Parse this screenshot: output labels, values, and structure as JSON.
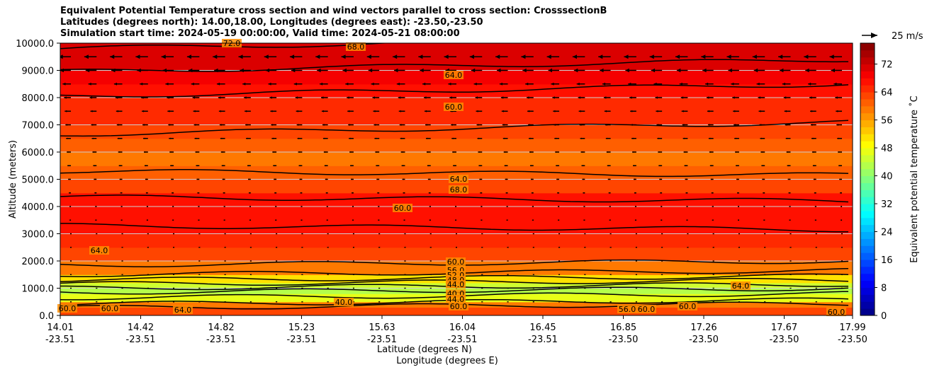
{
  "chart_data": {
    "type": "heatmap",
    "title_lines": [
      "Equivalent Potential Temperature cross section and wind vectors parallel to cross section: CrosssectionB",
      "Latitudes (degrees north): 14.00,18.00, Longitudes (degrees east): -23.50,-23.50",
      "Simulation start time: 2024-05-19 00:00:00, Valid time: 2024-05-21 08:00:00"
    ],
    "ylabel": "Altitude (meters)",
    "xlabel_lat": "Latitude (degrees N)",
    "xlabel_lon": "Longitude (degrees E)",
    "ylim": [
      0,
      10000
    ],
    "y_ticks": [
      "0.0",
      "1000.0",
      "2000.0",
      "3000.0",
      "4000.0",
      "5000.0",
      "6000.0",
      "7000.0",
      "8000.0",
      "9000.0",
      "10000.0"
    ],
    "x_ticks_lat": [
      "14.01",
      "14.42",
      "14.82",
      "15.23",
      "15.63",
      "16.04",
      "16.45",
      "16.85",
      "17.26",
      "17.67",
      "17.99"
    ],
    "x_ticks_lon": [
      "-23.51",
      "-23.51",
      "-23.51",
      "-23.51",
      "-23.51",
      "-23.51",
      "-23.51",
      "-23.50",
      "-23.50",
      "-23.50",
      "-23.50"
    ],
    "colorbar_label": "Equivalent potential temperature $^\\circ$C",
    "colorbar_ticks": [
      "0",
      "8",
      "16",
      "24",
      "32",
      "40",
      "48",
      "56",
      "64",
      "72"
    ],
    "colorbar_range": [
      0,
      78
    ],
    "colormap": "jet",
    "grid": "horizontal",
    "quiver_key_label": "25 m/s",
    "contour_labels": [
      "72.0",
      "68.0",
      "64.0",
      "60.0",
      "64.0",
      "68.0",
      "60.0",
      "64.0",
      "60.0",
      "56.0",
      "52.0",
      "48.0",
      "44.0",
      "40.0",
      "44.0",
      "60.0",
      "64.0",
      "40.0",
      "56.0",
      "60.0",
      "64.0",
      "60.0",
      "60.0",
      "60.0",
      "60.0"
    ],
    "theta_e_profile": {
      "altitude_m": [
        0,
        300,
        500,
        800,
        1000,
        1200,
        1500,
        2000,
        2500,
        3000,
        3500,
        4000,
        4500,
        5000,
        5500,
        6000,
        6500,
        7000,
        7500,
        8000,
        8500,
        9000,
        9500,
        10000
      ],
      "theta_e_c": [
        62,
        58,
        46,
        42,
        44,
        50,
        58,
        63,
        65,
        66,
        67,
        66,
        63,
        60,
        59,
        60,
        62,
        64,
        65,
        66,
        68,
        70,
        71,
        72
      ]
    },
    "wind_levels_m": [
      9500,
      9000,
      8500,
      8000,
      7500,
      7000,
      6500,
      6000,
      5500,
      5000,
      4500,
      4000,
      3500,
      3000,
      2500,
      2000,
      1500,
      1000,
      500
    ],
    "wind_speed_ms": [
      9,
      8,
      6,
      5,
      4.5,
      4,
      3.5,
      3,
      2.5,
      2,
      1.5,
      1,
      1,
      0.5,
      0.5,
      0.5,
      0.5,
      0.5,
      0.5
    ]
  }
}
